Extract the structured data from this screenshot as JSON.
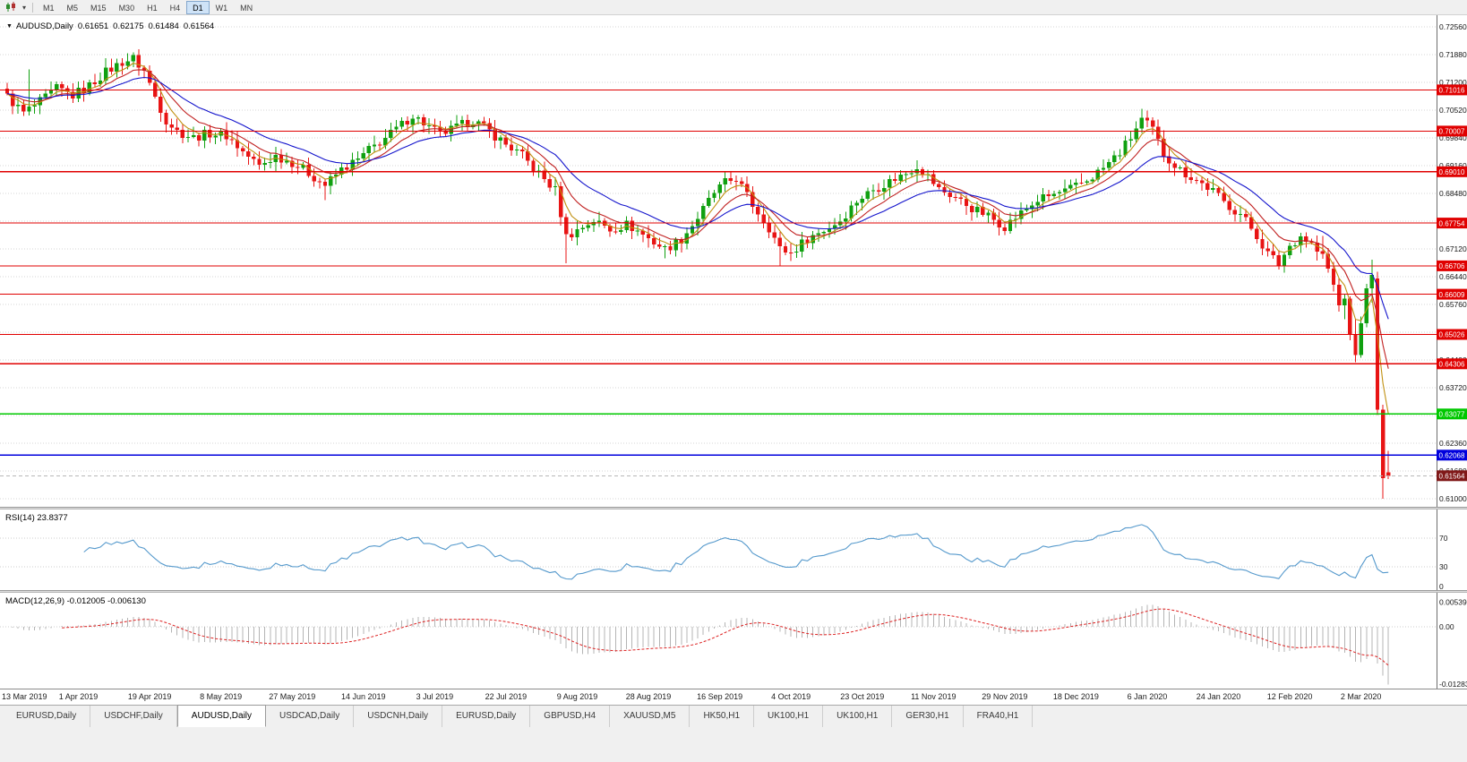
{
  "toolbar": {
    "timeframes": [
      "M1",
      "M5",
      "M15",
      "M30",
      "H1",
      "H4",
      "D1",
      "W1",
      "MN"
    ],
    "active_timeframe": "D1",
    "dropdown_caret": "▾"
  },
  "chart_header": {
    "marker": "▼",
    "symbol": "AUDUSD,Daily",
    "open": "0.61651",
    "high": "0.62175",
    "low": "0.61484",
    "close": "0.61564"
  },
  "chart_data": {
    "type": "candlestick",
    "symbol": "AUDUSD",
    "timeframe": "Daily",
    "bars": 253,
    "candle_colors": {
      "up": "#10a010",
      "down": "#e81414"
    },
    "price_axis": {
      "top_price": 0.7256,
      "tick_step": 0.0068,
      "ticks": [
        "0.72560",
        "0.71880",
        "0.71200",
        "0.70520",
        "0.69840",
        "0.69160",
        "0.68480",
        "0.67800",
        "0.67120",
        "0.66440",
        "0.65760",
        "0.65080",
        "0.64400",
        "0.63720",
        "0.63040",
        "0.62360",
        "0.61680",
        "0.61000"
      ]
    },
    "x_labels": [
      {
        "text": "13 Mar 2019",
        "bar": 0
      },
      {
        "text": "1 Apr 2019",
        "bar": 13
      },
      {
        "text": "19 Apr 2019",
        "bar": 26
      },
      {
        "text": "8 May 2019",
        "bar": 39
      },
      {
        "text": "27 May 2019",
        "bar": 52
      },
      {
        "text": "14 Jun 2019",
        "bar": 65
      },
      {
        "text": "3 Jul 2019",
        "bar": 78
      },
      {
        "text": "22 Jul 2019",
        "bar": 91
      },
      {
        "text": "9 Aug 2019",
        "bar": 104
      },
      {
        "text": "28 Aug 2019",
        "bar": 117
      },
      {
        "text": "16 Sep 2019",
        "bar": 130
      },
      {
        "text": "4 Oct 2019",
        "bar": 143
      },
      {
        "text": "23 Oct 2019",
        "bar": 156
      },
      {
        "text": "11 Nov 2019",
        "bar": 169
      },
      {
        "text": "29 Nov 2019",
        "bar": 182
      },
      {
        "text": "18 Dec 2019",
        "bar": 195
      },
      {
        "text": "6 Jan 2020",
        "bar": 208
      },
      {
        "text": "24 Jan 2020",
        "bar": 221
      },
      {
        "text": "12 Feb 2020",
        "bar": 234
      },
      {
        "text": "2 Mar 2020",
        "bar": 247
      }
    ],
    "anchors": [
      [
        0,
        0.7085
      ],
      [
        3,
        0.7045
      ],
      [
        6,
        0.7072
      ],
      [
        9,
        0.7105
      ],
      [
        12,
        0.7088
      ],
      [
        15,
        0.7112
      ],
      [
        18,
        0.7146
      ],
      [
        21,
        0.717
      ],
      [
        23,
        0.7178
      ],
      [
        25,
        0.7148
      ],
      [
        27,
        0.7085
      ],
      [
        29,
        0.7028
      ],
      [
        31,
        0.7
      ],
      [
        34,
        0.6985
      ],
      [
        37,
        0.6996
      ],
      [
        40,
        0.699
      ],
      [
        43,
        0.695
      ],
      [
        46,
        0.6915
      ],
      [
        49,
        0.694
      ],
      [
        52,
        0.6924
      ],
      [
        55,
        0.6898
      ],
      [
        58,
        0.6868
      ],
      [
        61,
        0.6906
      ],
      [
        64,
        0.693
      ],
      [
        66,
        0.6954
      ],
      [
        69,
        0.6984
      ],
      [
        72,
        0.7016
      ],
      [
        74,
        0.704
      ],
      [
        76,
        0.702
      ],
      [
        79,
        0.6992
      ],
      [
        82,
        0.701
      ],
      [
        85,
        0.7028
      ],
      [
        88,
        0.7
      ],
      [
        91,
        0.6968
      ],
      [
        94,
        0.694
      ],
      [
        97,
        0.6896
      ],
      [
        100,
        0.6856
      ],
      [
        102,
        0.6742
      ],
      [
        104,
        0.6758
      ],
      [
        107,
        0.6782
      ],
      [
        110,
        0.676
      ],
      [
        113,
        0.6772
      ],
      [
        116,
        0.6748
      ],
      [
        118,
        0.6728
      ],
      [
        120,
        0.6712
      ],
      [
        123,
        0.6736
      ],
      [
        126,
        0.6788
      ],
      [
        129,
        0.685
      ],
      [
        131,
        0.6874
      ],
      [
        133,
        0.6886
      ],
      [
        136,
        0.682
      ],
      [
        139,
        0.6764
      ],
      [
        141,
        0.6712
      ],
      [
        143,
        0.6702
      ],
      [
        146,
        0.6738
      ],
      [
        149,
        0.6758
      ],
      [
        152,
        0.6782
      ],
      [
        155,
        0.683
      ],
      [
        158,
        0.6858
      ],
      [
        161,
        0.6878
      ],
      [
        164,
        0.6898
      ],
      [
        166,
        0.6916
      ],
      [
        168,
        0.689
      ],
      [
        170,
        0.6858
      ],
      [
        173,
        0.6838
      ],
      [
        176,
        0.6812
      ],
      [
        179,
        0.6792
      ],
      [
        182,
        0.6768
      ],
      [
        185,
        0.68
      ],
      [
        188,
        0.6832
      ],
      [
        191,
        0.6845
      ],
      [
        194,
        0.6858
      ],
      [
        197,
        0.688
      ],
      [
        200,
        0.691
      ],
      [
        203,
        0.6948
      ],
      [
        205,
        0.6985
      ],
      [
        207,
        0.7028
      ],
      [
        209,
        0.7004
      ],
      [
        211,
        0.6945
      ],
      [
        214,
        0.6905
      ],
      [
        217,
        0.688
      ],
      [
        220,
        0.6854
      ],
      [
        222,
        0.6826
      ],
      [
        225,
        0.6798
      ],
      [
        228,
        0.6745
      ],
      [
        230,
        0.67
      ],
      [
        232,
        0.6676
      ],
      [
        234,
        0.672
      ],
      [
        236,
        0.6744
      ],
      [
        238,
        0.6724
      ],
      [
        239,
        0.6706
      ]
    ],
    "tail_start": 240,
    "tail_bars": [
      {
        "o": 0.6706,
        "h": 0.6744,
        "l": 0.6688,
        "c": 0.67
      },
      {
        "o": 0.67,
        "h": 0.6714,
        "l": 0.6654,
        "c": 0.6664
      },
      {
        "o": 0.6664,
        "h": 0.668,
        "l": 0.6608,
        "c": 0.6624
      },
      {
        "o": 0.6624,
        "h": 0.664,
        "l": 0.6558,
        "c": 0.6574
      },
      {
        "o": 0.6574,
        "h": 0.66,
        "l": 0.654,
        "c": 0.659
      },
      {
        "o": 0.659,
        "h": 0.6596,
        "l": 0.6488,
        "c": 0.6504
      },
      {
        "o": 0.6504,
        "h": 0.654,
        "l": 0.6434,
        "c": 0.6452
      },
      {
        "o": 0.6452,
        "h": 0.6546,
        "l": 0.6446,
        "c": 0.653
      },
      {
        "o": 0.653,
        "h": 0.6626,
        "l": 0.652,
        "c": 0.6616
      },
      {
        "o": 0.6616,
        "h": 0.6686,
        "l": 0.658,
        "c": 0.6648
      },
      {
        "o": 0.664,
        "h": 0.6656,
        "l": 0.6305,
        "c": 0.6318
      },
      {
        "o": 0.6318,
        "h": 0.633,
        "l": 0.61,
        "c": 0.615
      },
      {
        "o": 0.61651,
        "h": 0.62175,
        "l": 0.61484,
        "c": 0.61564
      }
    ],
    "wick_overrides": [
      {
        "bar": 4,
        "high": 0.7152
      },
      {
        "bar": 23,
        "high": 0.7192
      },
      {
        "bar": 58,
        "low": 0.6832
      },
      {
        "bar": 102,
        "low": 0.6677
      },
      {
        "bar": 120,
        "low": 0.6689
      },
      {
        "bar": 141,
        "low": 0.6671
      },
      {
        "bar": 207,
        "high": 0.7032
      }
    ],
    "levels": [
      {
        "price": 0.71016,
        "label": "0.71016",
        "color": "#e00000"
      },
      {
        "price": 0.70007,
        "label": "0.70007",
        "color": "#e00000"
      },
      {
        "price": 0.6901,
        "label": "0.69010",
        "color": "#e00000"
      },
      {
        "price": 0.67754,
        "label": "0.67754",
        "color": "#e00000"
      },
      {
        "price": 0.66706,
        "label": "0.66706",
        "color": "#e00000"
      },
      {
        "price": 0.66009,
        "label": "0.66009",
        "color": "#e00000"
      },
      {
        "price": 0.65026,
        "label": "0.65026",
        "color": "#e00000"
      },
      {
        "price": 0.64306,
        "label": "0.64306",
        "color": "#e00000"
      },
      {
        "price": 0.63077,
        "label": "0.63077",
        "color": "#00c800"
      },
      {
        "price": 0.62068,
        "label": "0.62068",
        "color": "#0000dd"
      }
    ],
    "current_price": {
      "price": 0.61564,
      "label": "0.61564",
      "color": "#801818"
    },
    "moving_averages": [
      {
        "name": "ma-fast",
        "period": 5,
        "color": "#c09010"
      },
      {
        "name": "ma-medium",
        "period": 10,
        "color": "#c02020"
      },
      {
        "name": "ma-slow",
        "period": 21,
        "color": "#1414cc"
      }
    ],
    "rsi": {
      "label": "RSI(14) 23.8377",
      "period": 14,
      "grid_levels": [
        70,
        30
      ],
      "axis_ticks": [
        {
          "text": "70",
          "value": 70
        },
        {
          "text": "30",
          "value": 30
        },
        {
          "text": "0",
          "value": 0
        }
      ],
      "color": "#5599cc"
    },
    "macd": {
      "label": "MACD(12,26,9) -0.012005 -0.006130",
      "fast": 12,
      "slow": 26,
      "signal": 9,
      "axis_ticks": [
        {
          "text": "0.005394",
          "value": 0.005394
        },
        {
          "text": "0.00",
          "value": 0
        },
        {
          "text": "-0.01283",
          "value": -0.01283
        }
      ],
      "hist_color": "#b4b4b4",
      "signal_color": "#dd2222"
    }
  },
  "tabs": [
    {
      "label": "EURUSD,Daily",
      "active": false
    },
    {
      "label": "USDCHF,Daily",
      "active": false
    },
    {
      "label": "AUDUSD,Daily",
      "active": true
    },
    {
      "label": "USDCAD,Daily",
      "active": false
    },
    {
      "label": "USDCNH,Daily",
      "active": false
    },
    {
      "label": "EURUSD,Daily",
      "active": false
    },
    {
      "label": "GBPUSD,H4",
      "active": false
    },
    {
      "label": "XAUUSD,M5",
      "active": false
    },
    {
      "label": "HK50,H1",
      "active": false
    },
    {
      "label": "UK100,H1",
      "active": false
    },
    {
      "label": "UK100,H1",
      "active": false
    },
    {
      "label": "GER30,H1",
      "active": false
    },
    {
      "label": "FRA40,H1",
      "active": false
    }
  ]
}
